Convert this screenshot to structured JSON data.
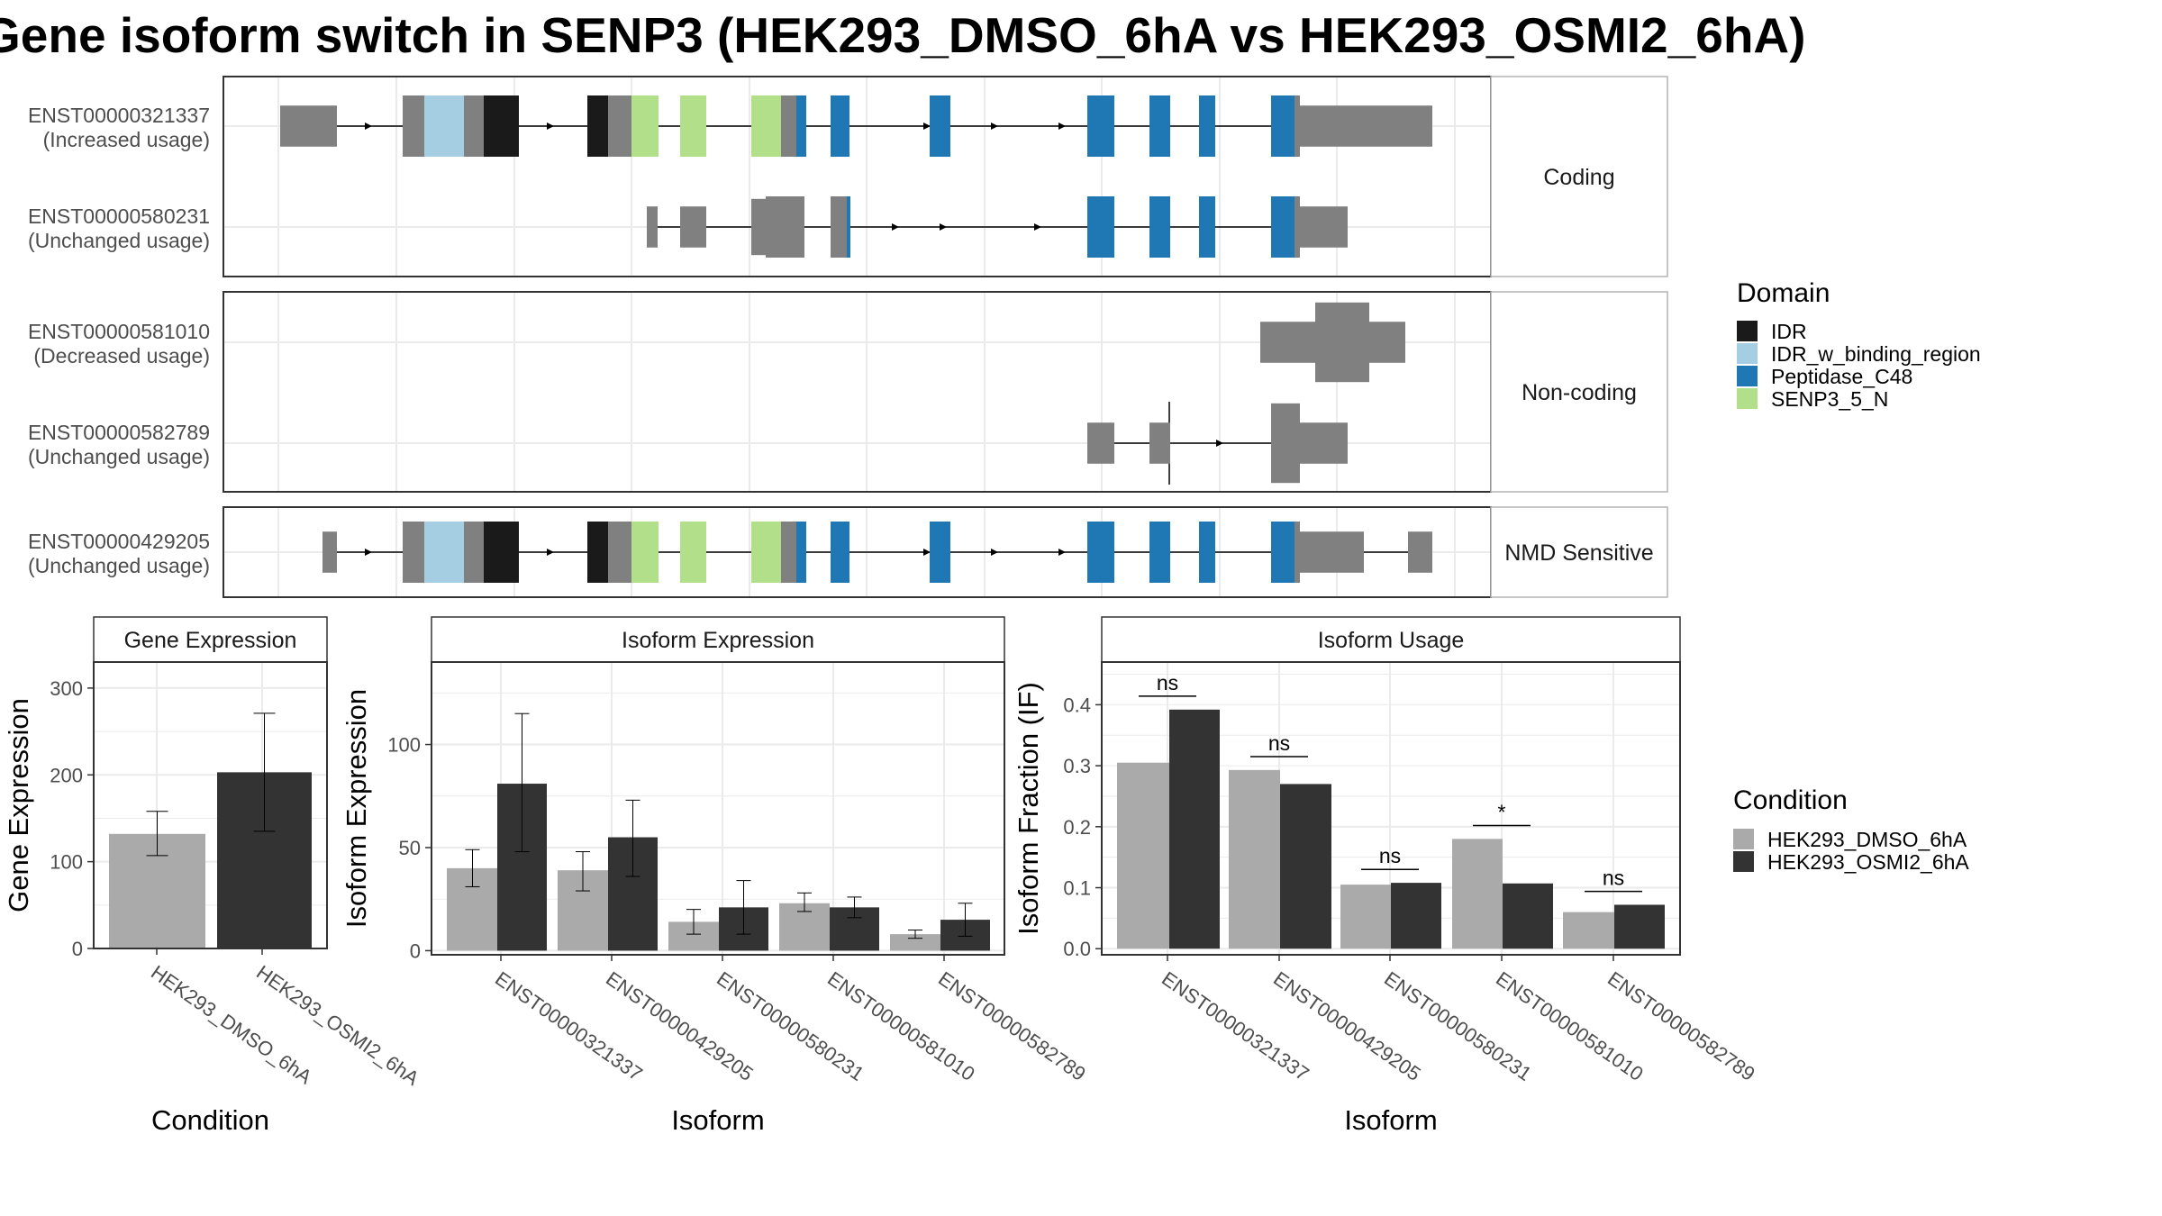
{
  "title": "Gene isoform switch in SENP3 (HEK293_DMSO_6hA vs HEK293_OSMI2_6hA)",
  "colors": {
    "exon": "#808080",
    "IDR": "#1a1a1a",
    "IDR_w_binding_region": "#a6cee3",
    "Peptidase_C48": "#1f78b4",
    "SENP3_5_N": "#b2df8a",
    "HEK293_DMSO_6hA": "#aaaaaa",
    "HEK293_OSMI2_6hA": "#333333",
    "grid": "#ebebeb",
    "panel_border": "#333333",
    "strip_border": "#b3b3b3"
  },
  "structure": {
    "groups": [
      {
        "label": "Coding",
        "transcripts": [
          {
            "id": "ENST00000321337",
            "usage": "(Increased usage)"
          },
          {
            "id": "ENST00000580231",
            "usage": "(Unchanged usage)"
          }
        ]
      },
      {
        "label": "Non-coding",
        "transcripts": [
          {
            "id": "ENST00000581010",
            "usage": "(Decreased usage)"
          },
          {
            "id": "ENST00000582789",
            "usage": "(Unchanged usage)"
          }
        ]
      },
      {
        "label": "NMD Sensitive",
        "transcripts": [
          {
            "id": "ENST00000429205",
            "usage": "(Unchanged usage)"
          }
        ]
      }
    ]
  },
  "legend_domain": {
    "title": "Domain",
    "items": [
      "IDR",
      "IDR_w_binding_region",
      "Peptidase_C48",
      "SENP3_5_N"
    ]
  },
  "legend_condition": {
    "title": "Condition",
    "items": [
      "HEK293_DMSO_6hA",
      "HEK293_OSMI2_6hA"
    ]
  },
  "chart_data": [
    {
      "type": "bar",
      "title": "Gene Expression",
      "xlabel": "Condition",
      "ylabel": "Gene Expression",
      "categories": [
        "HEK293_DMSO_6hA",
        "HEK293_OSMI2_6hA"
      ],
      "values": [
        132,
        203
      ],
      "errors": [
        [
          107,
          158
        ],
        [
          135,
          271
        ]
      ],
      "ylim": [
        0,
        330
      ],
      "yticks": [
        0,
        100,
        200,
        300
      ]
    },
    {
      "type": "bar",
      "title": "Isoform Expression",
      "xlabel": "Isoform",
      "ylabel": "Isoform Expression",
      "categories": [
        "ENST00000321337",
        "ENST00000429205",
        "ENST00000580231",
        "ENST00000581010",
        "ENST00000582789"
      ],
      "series": [
        {
          "name": "HEK293_DMSO_6hA",
          "values": [
            40,
            39,
            14,
            23,
            8
          ],
          "errors": [
            [
              31,
              49
            ],
            [
              29,
              48
            ],
            [
              8,
              20
            ],
            [
              19,
              28
            ],
            [
              6,
              10
            ]
          ]
        },
        {
          "name": "HEK293_OSMI2_6hA",
          "values": [
            81,
            55,
            21,
            21,
            15
          ],
          "errors": [
            [
              48,
              115
            ],
            [
              36,
              73
            ],
            [
              8,
              34
            ],
            [
              16,
              26
            ],
            [
              7,
              23
            ]
          ]
        }
      ],
      "ylim": [
        -2,
        140
      ],
      "yticks": [
        0,
        50,
        100
      ]
    },
    {
      "type": "bar",
      "title": "Isoform Usage",
      "xlabel": "Isoform",
      "ylabel": "Isoform Fraction (IF)",
      "categories": [
        "ENST00000321337",
        "ENST00000429205",
        "ENST00000580231",
        "ENST00000581010",
        "ENST00000582789"
      ],
      "series": [
        {
          "name": "HEK293_DMSO_6hA",
          "values": [
            0.305,
            0.293,
            0.105,
            0.18,
            0.06
          ]
        },
        {
          "name": "HEK293_OSMI2_6hA",
          "values": [
            0.392,
            0.27,
            0.108,
            0.107,
            0.072
          ]
        }
      ],
      "significance": [
        "ns",
        "ns",
        "ns",
        "*",
        "ns"
      ],
      "ylim": [
        -0.01,
        0.47
      ],
      "yticks": [
        0.0,
        0.1,
        0.2,
        0.3,
        0.4
      ]
    }
  ]
}
